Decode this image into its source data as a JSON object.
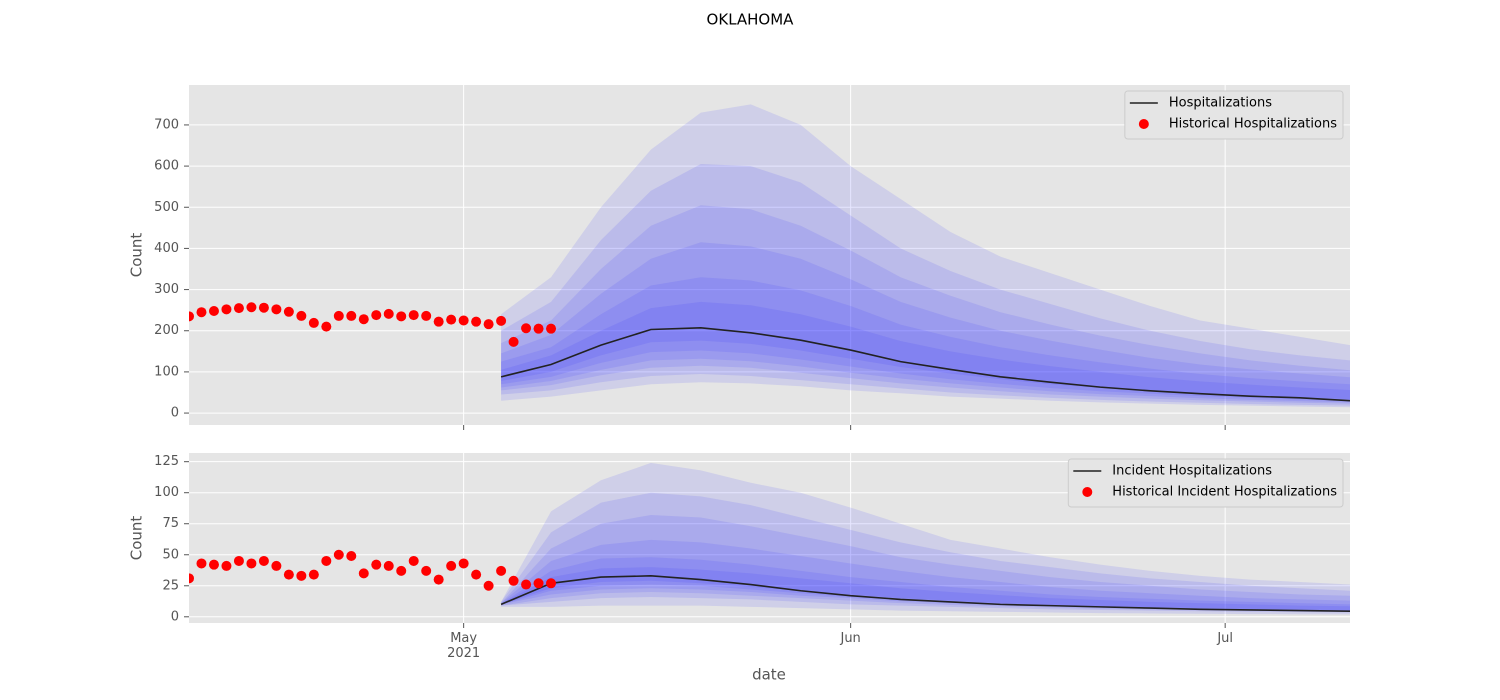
{
  "title": "OKLAHOMA",
  "x_label": "date",
  "chart_data": [
    {
      "type": "line",
      "y_label": "Count",
      "grid": true,
      "legend": "upper right",
      "ylim": [
        -29,
        797
      ],
      "yticks": [
        0,
        100,
        200,
        300,
        400,
        500,
        600,
        700
      ],
      "series": [
        {
          "name": "Hospitalizations",
          "type": "line",
          "color": "#222222",
          "x": [
            124,
            128,
            132,
            136,
            140,
            144,
            148,
            152,
            156,
            160,
            164,
            168,
            172,
            176,
            180,
            184,
            188,
            192
          ],
          "values": [
            88,
            118,
            165,
            203,
            207,
            195,
            177,
            153,
            125,
            106,
            88,
            75,
            63,
            54,
            47,
            41,
            37,
            30
          ]
        },
        {
          "name": "Historical Hospitalizations",
          "type": "scatter",
          "color": "#ff0000",
          "x": [
            99,
            100,
            101,
            102,
            103,
            104,
            105,
            106,
            107,
            108,
            109,
            110,
            111,
            112,
            113,
            114,
            115,
            116,
            117,
            118,
            119,
            120,
            121,
            122,
            123,
            124,
            125,
            126,
            127,
            128
          ],
          "values": [
            235,
            245,
            248,
            252,
            255,
            257,
            256,
            252,
            246,
            236,
            219,
            210,
            236,
            236,
            228,
            238,
            241,
            235,
            238,
            236,
            222,
            227,
            225,
            222,
            216,
            224,
            173,
            206,
            205,
            205
          ]
        }
      ],
      "bands": {
        "color": "#3030ff",
        "opacity": 0.12,
        "x": [
          124,
          128,
          132,
          136,
          140,
          144,
          148,
          152,
          156,
          160,
          164,
          168,
          172,
          176,
          180,
          184,
          188,
          192
        ],
        "ranges": [
          {
            "upper": [
              240,
              330,
              500,
              640,
              730,
              750,
              700,
              600,
              520,
              440,
              380,
              340,
              300,
              260,
              225,
              205,
              185,
              165
            ],
            "lower": [
              30,
              40,
              55,
              70,
              75,
              72,
              65,
              55,
              48,
              40,
              35,
              30,
              26,
              23,
              20,
              18,
              16,
              14
            ]
          },
          {
            "upper": [
              200,
              270,
              420,
              540,
              605,
              600,
              560,
              480,
              400,
              345,
              300,
              265,
              230,
              200,
              175,
              155,
              140,
              128
            ],
            "lower": [
              45,
              55,
              75,
              90,
              95,
              90,
              80,
              70,
              60,
              50,
              43,
              37,
              32,
              28,
              25,
              22,
              20,
              18
            ]
          },
          {
            "upper": [
              170,
              225,
              350,
              455,
              505,
              495,
              455,
              395,
              330,
              285,
              245,
              215,
              188,
              165,
              145,
              128,
              115,
              104
            ],
            "lower": [
              55,
              68,
              92,
              110,
              115,
              110,
              98,
              85,
              72,
              62,
              53,
              45,
              40,
              35,
              31,
              28,
              25,
              23
            ]
          },
          {
            "upper": [
              145,
              190,
              290,
              375,
              415,
              405,
              375,
              325,
              270,
              232,
              200,
              176,
              154,
              134,
              118,
              106,
              96,
              87
            ],
            "lower": [
              62,
              78,
              105,
              128,
              132,
              126,
              113,
              98,
              84,
              72,
              62,
              53,
              46,
              41,
              36,
              32,
              29,
              26
            ]
          },
          {
            "upper": [
              125,
              160,
              240,
              310,
              330,
              322,
              298,
              260,
              215,
              185,
              160,
              140,
              123,
              108,
              95,
              85,
              77,
              70
            ],
            "lower": [
              70,
              88,
              122,
              148,
              152,
              145,
              130,
              113,
              96,
              82,
              71,
              61,
              53,
              47,
              41,
              37,
              33,
              30
            ]
          },
          {
            "upper": [
              105,
              140,
              200,
              255,
              270,
              262,
              240,
              210,
              175,
              150,
              130,
              114,
              100,
              87,
              77,
              69,
              62,
              56
            ],
            "lower": [
              78,
              100,
              140,
              172,
              176,
              168,
              152,
              132,
              112,
              96,
              82,
              70,
              61,
              54,
              48,
              43,
              38,
              34
            ]
          }
        ]
      }
    },
    {
      "type": "line",
      "y_label": "Count",
      "grid": true,
      "legend": "upper right",
      "xlim": [
        99,
        192
      ],
      "xticks": [
        {
          "value": 121,
          "label": "May\n2021"
        },
        {
          "value": 152,
          "label": "Jun"
        },
        {
          "value": 182,
          "label": "Jul"
        }
      ],
      "ylim": [
        -5,
        132
      ],
      "yticks": [
        0,
        25,
        50,
        75,
        100,
        125
      ],
      "series": [
        {
          "name": "Incident Hospitalizations",
          "type": "line",
          "color": "#222222",
          "x": [
            124,
            128,
            132,
            136,
            140,
            144,
            148,
            152,
            156,
            160,
            164,
            168,
            172,
            176,
            180,
            184,
            188,
            192
          ],
          "values": [
            10,
            27,
            32,
            33,
            30,
            26,
            21,
            17,
            14,
            12,
            10,
            9,
            8,
            7,
            6,
            5.5,
            5,
            4.5
          ]
        },
        {
          "name": "Historical Incident Hospitalizations",
          "type": "scatter",
          "color": "#ff0000",
          "x": [
            99,
            100,
            101,
            102,
            103,
            104,
            105,
            106,
            107,
            108,
            109,
            110,
            111,
            112,
            113,
            114,
            115,
            116,
            117,
            118,
            119,
            120,
            121,
            122,
            123,
            124,
            125,
            126,
            127,
            128
          ],
          "values": [
            31,
            43,
            42,
            41,
            45,
            43,
            45,
            41,
            34,
            33,
            34,
            45,
            50,
            49,
            35,
            42,
            41,
            37,
            45,
            37,
            30,
            41,
            43,
            34,
            25,
            37,
            29,
            26,
            27,
            27
          ]
        }
      ],
      "bands": {
        "color": "#3030ff",
        "opacity": 0.12,
        "x": [
          124,
          128,
          132,
          136,
          140,
          144,
          148,
          152,
          156,
          160,
          164,
          168,
          172,
          176,
          180,
          184,
          188,
          192
        ],
        "ranges": [
          {
            "upper": [
              12,
              85,
              110,
              124,
              118,
              108,
              100,
              88,
              75,
              62,
              55,
              48,
              42,
              37,
              33,
              30,
              28,
              26
            ],
            "lower": [
              8,
              8,
              9,
              9,
              9,
              8,
              7,
              6,
              5,
              4.5,
              4,
              3.5,
              3,
              2.7,
              2.5,
              2.2,
              2,
              1.8
            ]
          },
          {
            "upper": [
              12,
              68,
              92,
              100,
              97,
              90,
              80,
              70,
              60,
              52,
              45,
              40,
              35,
              31,
              28,
              25,
              23,
              21
            ],
            "lower": [
              9,
              12,
              15,
              16,
              15,
              14,
              12,
              10,
              9,
              8,
              7,
              6,
              5.5,
              5,
              4.5,
              4,
              3.8,
              3.5
            ]
          },
          {
            "upper": [
              11,
              55,
              75,
              82,
              80,
              73,
              65,
              57,
              48,
              42,
              37,
              32,
              28,
              25,
              22,
              20,
              18,
              17
            ],
            "lower": [
              9,
              15,
              19,
              20,
              19,
              17,
              15,
              13,
              11,
              9.5,
              8.5,
              7.5,
              6.5,
              6,
              5.5,
              5,
              4.6,
              4.2
            ]
          },
          {
            "upper": [
              11,
              45,
              58,
              62,
              60,
              55,
              49,
              43,
              37,
              32,
              28,
              24,
              21,
              19,
              17,
              15,
              14,
              13
            ],
            "lower": [
              10,
              18,
              22,
              23,
              22,
              20,
              17,
              15,
              12.5,
              11,
              9.5,
              8.5,
              7.5,
              6.7,
              6,
              5.5,
              5.1,
              4.6
            ]
          },
          {
            "upper": [
              10.5,
              37,
              47,
              48,
              46,
              42,
              37,
              32,
              28,
              24,
              21,
              18,
              16,
              14.5,
              13,
              12,
              11,
              10
            ],
            "lower": [
              10,
              21,
              25,
              26,
              25,
              22,
              19,
              16,
              14,
              12,
              10.5,
              9,
              8,
              7.2,
              6.5,
              6,
              5.5,
              5
            ]
          },
          {
            "upper": [
              10.5,
              32,
              39,
              40,
              38,
              35,
              31,
              27,
              23,
              20,
              17.5,
              15,
              13.5,
              12,
              11,
              10,
              9,
              8.5
            ],
            "lower": [
              10,
              23,
              28,
              29,
              27,
              24,
              21,
              18,
              15,
              13,
              11,
              9.7,
              8.5,
              7.7,
              7,
              6.4,
              5.8,
              5.3
            ]
          }
        ]
      }
    }
  ]
}
